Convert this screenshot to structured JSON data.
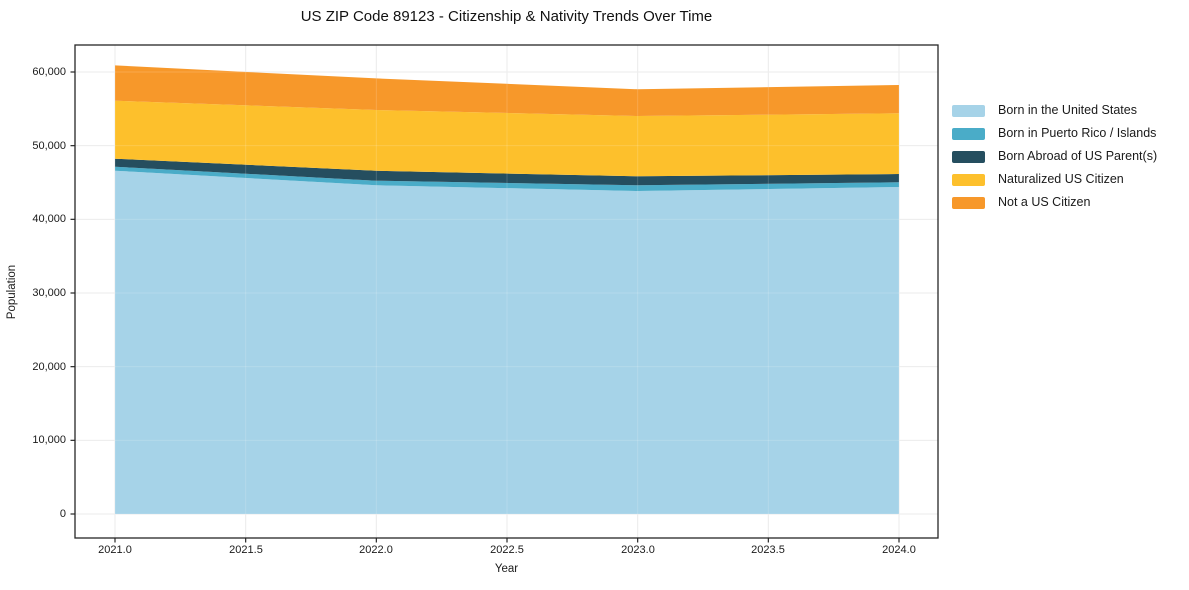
{
  "title": "US ZIP Code 89123 - Citizenship & Nativity Trends Over Time",
  "axes": {
    "xlabel": "Year",
    "ylabel": "Population"
  },
  "chart_data": {
    "type": "area",
    "stacked": true,
    "title": "US ZIP Code 89123 - Citizenship & Nativity Trends Over Time",
    "xlabel": "Year",
    "ylabel": "Population",
    "x": [
      2021,
      2022,
      2023,
      2024
    ],
    "series": [
      {
        "name": "Born in the United States",
        "color": "#A6D3E8",
        "values": [
          46600,
          44620,
          43850,
          44390
        ]
      },
      {
        "name": "Born in Puerto Rico / Islands",
        "color": "#4AACC8",
        "values": [
          550,
          630,
          770,
          640
        ]
      },
      {
        "name": "Born Abroad of US Parent(s)",
        "color": "#254E5F",
        "values": [
          1080,
          1340,
          1220,
          1130
        ]
      },
      {
        "name": "Naturalized US Citizen",
        "color": "#FDC02C",
        "values": [
          7880,
          8250,
          8190,
          8230
        ]
      },
      {
        "name": "Not a US Citizen",
        "color": "#F7982A",
        "values": [
          4790,
          4290,
          3620,
          3850
        ]
      }
    ],
    "totals": [
      60900,
      59130,
      57650,
      58240
    ],
    "xtick_values": [
      2021,
      2021.5,
      2022,
      2022.5,
      2023,
      2023.5,
      2024
    ],
    "xticks": [
      "2021.0",
      "2021.5",
      "2022.0",
      "2022.5",
      "2023.0",
      "2023.5",
      "2024.0"
    ],
    "ytick_values": [
      0,
      10000,
      20000,
      30000,
      40000,
      50000,
      60000
    ],
    "yticks": [
      "0",
      "10,000",
      "20,000",
      "30,000",
      "40,000",
      "50,000",
      "60,000"
    ],
    "xlim": [
      2020.85,
      2024.15
    ],
    "ylim": [
      -3260,
      63670
    ],
    "grid": true,
    "legend_position": "right",
    "grid_color": "#e8e8e8",
    "frame_color": "#262626"
  }
}
